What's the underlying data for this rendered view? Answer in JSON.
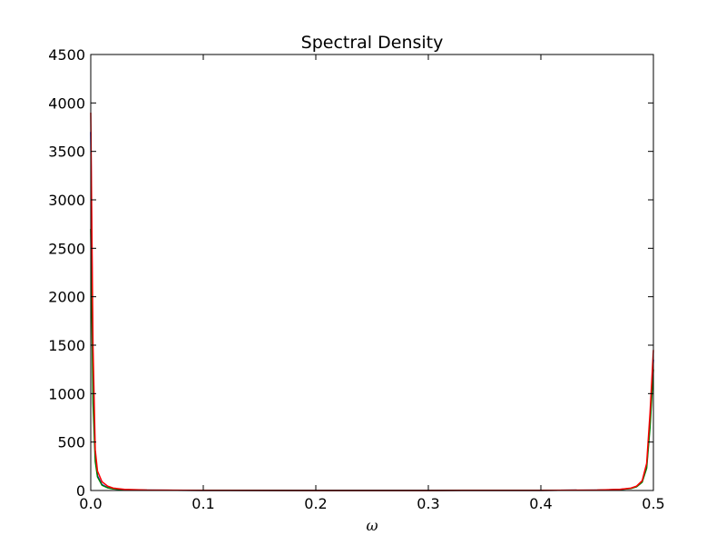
{
  "chart_data": {
    "type": "line",
    "title": "Spectral Density",
    "xlabel": "ω",
    "ylabel": "",
    "xlim": [
      0.0,
      0.5
    ],
    "ylim": [
      0,
      4500
    ],
    "xticks": [
      "0.0",
      "0.1",
      "0.2",
      "0.3",
      "0.4",
      "0.5"
    ],
    "xtick_values": [
      0.0,
      0.1,
      0.2,
      0.3,
      0.4,
      0.5
    ],
    "yticks": [
      "0",
      "500",
      "1000",
      "1500",
      "2000",
      "2500",
      "3000",
      "3500",
      "4000",
      "4500"
    ],
    "ytick_values": [
      0,
      500,
      1000,
      1500,
      2000,
      2500,
      3000,
      3500,
      4000,
      4500
    ],
    "grid": false,
    "series": [
      {
        "color": "#0000ff",
        "x": [
          0.0,
          0.002,
          0.004,
          0.006,
          0.01,
          0.015,
          0.02,
          0.03,
          0.05,
          0.1,
          0.2,
          0.3,
          0.4,
          0.45,
          0.47,
          0.48,
          0.485,
          0.49,
          0.494,
          0.497,
          0.5
        ],
        "y": [
          3700,
          1200,
          350,
          150,
          60,
          30,
          18,
          8,
          4,
          1,
          0.5,
          0.5,
          1,
          4,
          10,
          22,
          40,
          90,
          250,
          700,
          1350
        ]
      },
      {
        "color": "#008000",
        "x": [
          0.0,
          0.002,
          0.004,
          0.006,
          0.01,
          0.015,
          0.02,
          0.03,
          0.05,
          0.1,
          0.2,
          0.3,
          0.4,
          0.45,
          0.47,
          0.48,
          0.485,
          0.49,
          0.494,
          0.497,
          0.5
        ],
        "y": [
          2700,
          900,
          300,
          140,
          55,
          28,
          16,
          8,
          4,
          1,
          0.5,
          0.5,
          1,
          4,
          10,
          20,
          38,
          85,
          230,
          650,
          1250
        ]
      },
      {
        "color": "#ff0000",
        "x": [
          0.0,
          0.002,
          0.004,
          0.006,
          0.01,
          0.015,
          0.02,
          0.03,
          0.05,
          0.1,
          0.2,
          0.3,
          0.4,
          0.45,
          0.47,
          0.48,
          0.485,
          0.49,
          0.494,
          0.497,
          0.5
        ],
        "y": [
          3900,
          1500,
          420,
          200,
          90,
          45,
          25,
          12,
          5,
          1,
          0.5,
          0.5,
          1,
          5,
          12,
          25,
          45,
          100,
          280,
          800,
          1450
        ]
      }
    ]
  }
}
